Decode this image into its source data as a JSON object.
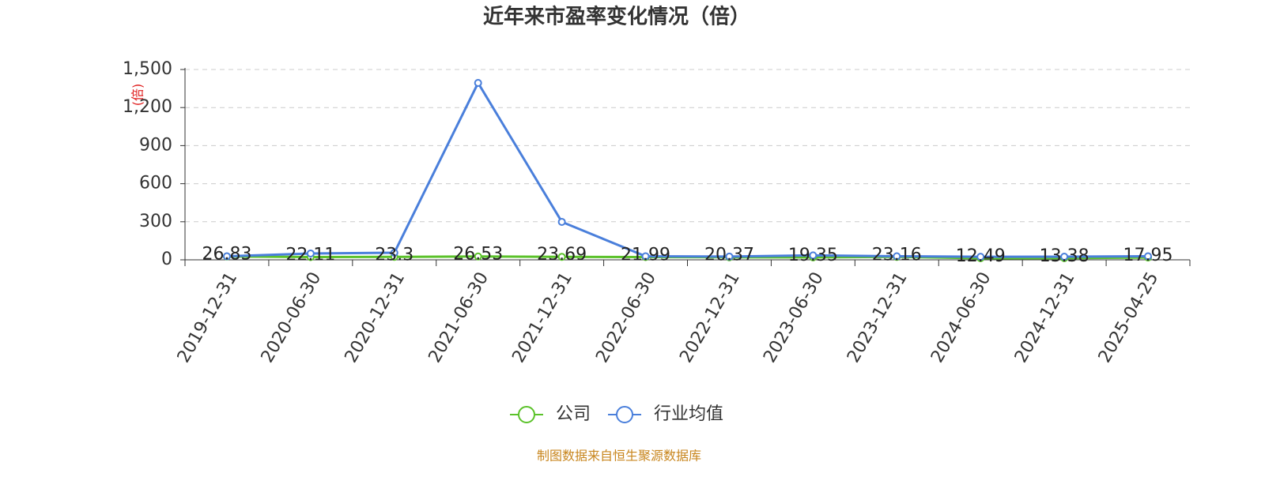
{
  "chart_data": {
    "type": "line",
    "title": "近年来市盈率变化情况（倍）",
    "y_label": "(倍)",
    "source": "制图数据来自恒生聚源数据库",
    "categories": [
      "2019-12-31",
      "2020-06-30",
      "2020-12-31",
      "2021-06-30",
      "2021-12-31",
      "2022-06-30",
      "2022-12-31",
      "2023-06-30",
      "2023-12-31",
      "2024-06-30",
      "2024-12-31",
      "2025-04-25"
    ],
    "series": [
      {
        "name": "公司",
        "color": "#5bc22a",
        "values": [
          26.83,
          22.11,
          23.3,
          26.53,
          23.69,
          21.99,
          20.37,
          19.35,
          23.16,
          12.49,
          13.38,
          17.95
        ],
        "show_labels": true
      },
      {
        "name": "行业均值",
        "color": "#4a7fdb",
        "values": [
          28,
          50,
          56,
          1394,
          299,
          28,
          26,
          35,
          28,
          24,
          25,
          28
        ],
        "show_labels": false
      }
    ],
    "ylim": [
      0,
      1500
    ],
    "yticks": [
      0,
      300,
      600,
      900,
      {
        "value": 1200,
        "label": "1,200"
      },
      {
        "value": 1500,
        "label": "1,500"
      }
    ],
    "grid": true
  }
}
